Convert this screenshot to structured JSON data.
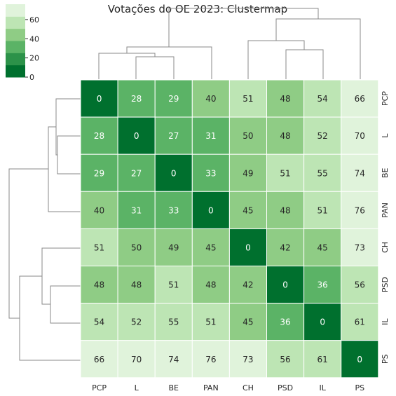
{
  "chart_data": {
    "type": "heatmap",
    "title": "Votações do OE 2023: Clustermap",
    "rows": [
      "PCP",
      "L",
      "BE",
      "PAN",
      "CH",
      "PSD",
      "IL",
      "PS"
    ],
    "cols": [
      "PCP",
      "L",
      "BE",
      "PAN",
      "CH",
      "PSD",
      "IL",
      "PS"
    ],
    "values": [
      [
        0,
        28,
        29,
        40,
        51,
        48,
        54,
        66
      ],
      [
        28,
        0,
        27,
        31,
        50,
        48,
        52,
        70
      ],
      [
        29,
        27,
        0,
        33,
        49,
        51,
        55,
        74
      ],
      [
        40,
        31,
        33,
        0,
        45,
        48,
        51,
        76
      ],
      [
        51,
        50,
        49,
        45,
        0,
        42,
        45,
        73
      ],
      [
        48,
        48,
        51,
        48,
        42,
        0,
        36,
        56
      ],
      [
        54,
        52,
        55,
        51,
        45,
        36,
        0,
        61
      ],
      [
        66,
        70,
        74,
        76,
        73,
        56,
        61,
        0
      ]
    ],
    "colorbar": {
      "ticks": [
        0,
        20,
        40,
        60
      ],
      "range": [
        0,
        76
      ],
      "colors": [
        "#00702e",
        "#2c9249",
        "#5bb366",
        "#8fcc85",
        "#bde5b4",
        "#e0f3db"
      ]
    },
    "col_dendrogram_order": [
      "PCP",
      "L",
      "BE",
      "PAN",
      "CH",
      "PSD",
      "IL",
      "PS"
    ],
    "row_dendrogram_order": [
      "PCP",
      "L",
      "BE",
      "PAN",
      "CH",
      "PSD",
      "IL",
      "PS"
    ],
    "grid": false
  }
}
